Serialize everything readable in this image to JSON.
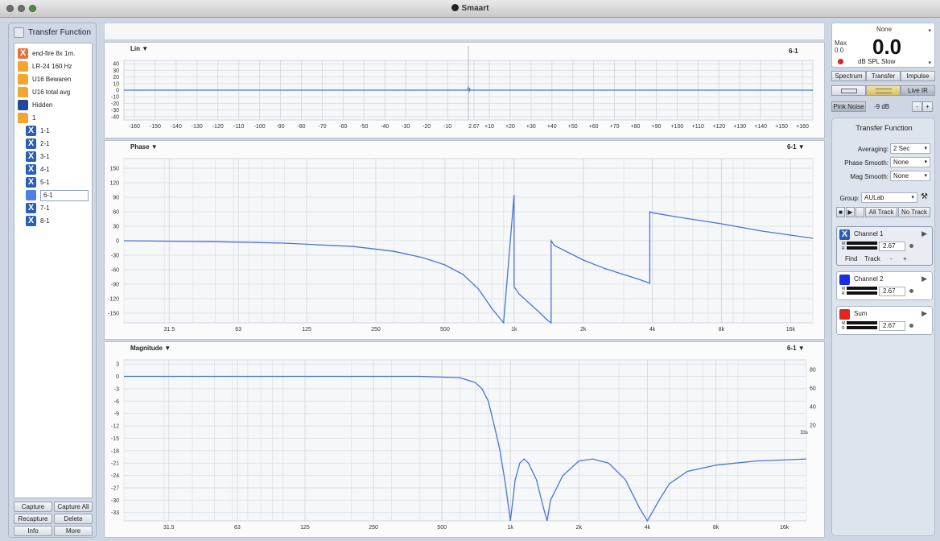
{
  "window": {
    "title": "Smaart"
  },
  "left_panel": {
    "title": "Transfer Function",
    "items": [
      {
        "label": "end-fire 8x 1m.",
        "icon": "x-orange-icon"
      },
      {
        "label": "LR-24 160 Hz",
        "icon": "folder-icon"
      },
      {
        "label": "U16 Bewaren",
        "icon": "folder-icon"
      },
      {
        "label": "U16 total avg",
        "icon": "folder-icon"
      },
      {
        "label": "Hidden",
        "icon": "blue-square-icon"
      },
      {
        "label": "1",
        "icon": "folder-open-icon"
      }
    ],
    "sub_items": [
      {
        "label": "1-1",
        "icon": "x-blue-icon"
      },
      {
        "label": "2-1",
        "icon": "x-blue-icon"
      },
      {
        "label": "3-1",
        "icon": "x-blue-icon"
      },
      {
        "label": "4-1",
        "icon": "x-blue-icon"
      },
      {
        "label": "5-1",
        "icon": "x-blue-icon"
      },
      {
        "label": "6-1",
        "icon": "light-blue-square-icon"
      },
      {
        "label": "7-1",
        "icon": "x-blue-icon"
      },
      {
        "label": "8-1",
        "icon": "x-blue-icon"
      }
    ],
    "buttons": {
      "capture": "Capture",
      "capture_all": "Capture All",
      "recapture": "Recapture",
      "delete": "Delete",
      "info": "Info",
      "more": "More"
    }
  },
  "impulse_plot": {
    "label": "Lin ▼",
    "trace": "6-1",
    "y_ticks": [
      "40",
      "30",
      "20",
      "10",
      "0",
      "-10",
      "-20",
      "-30",
      "-40"
    ],
    "x_ticks": [
      "-160",
      "-150",
      "-140",
      "-130",
      "-120",
      "-110",
      "-100",
      "-90",
      "-80",
      "-70",
      "-60",
      "-50",
      "-40",
      "-30",
      "-20",
      "-10",
      "2.67",
      "+10",
      "+20",
      "+30",
      "+40",
      "+50",
      "+60",
      "+70",
      "+80",
      "+90",
      "+100",
      "+110",
      "+120",
      "+130",
      "+140",
      "+150",
      "+160"
    ]
  },
  "phase_plot": {
    "label": "Phase ▼",
    "trace": "6-1 ▼",
    "y_ticks": [
      "150",
      "120",
      "90",
      "60",
      "30",
      "0",
      "-30",
      "-60",
      "-90",
      "-120",
      "-150"
    ],
    "x_ticks": [
      "31.5",
      "63",
      "125",
      "250",
      "500",
      "1k",
      "2k",
      "4k",
      "8k",
      "16k"
    ]
  },
  "magnitude_plot": {
    "label": "Magnitude ▼",
    "trace": "6-1 ▼",
    "y_ticks": [
      "3",
      "0",
      "-3",
      "-6",
      "-9",
      "-12",
      "-15",
      "-18",
      "-21",
      "-24",
      "-27",
      "-30",
      "-33"
    ],
    "y_ticks_right": [
      "80",
      "60",
      "40",
      "20"
    ],
    "right_note": "33s",
    "x_ticks": [
      "31.5",
      "63",
      "125",
      "250",
      "500",
      "1k",
      "2k",
      "4k",
      "8k",
      "16k"
    ]
  },
  "chart_data": [
    {
      "type": "line",
      "title": "Lin",
      "ylim": [
        -45,
        45
      ],
      "xlim": [
        -165,
        165
      ],
      "series": [
        {
          "name": "6-1",
          "x": [
            -165,
            -0.5,
            0,
            0.3,
            0.6,
            1,
            2,
            165
          ],
          "y": [
            0,
            0,
            6,
            -3,
            2,
            0,
            0,
            0
          ]
        }
      ]
    },
    {
      "type": "line",
      "title": "Phase",
      "x_scale": "log",
      "xlim": [
        20,
        20000
      ],
      "ylim": [
        -170,
        170
      ],
      "series": [
        {
          "name": "6-1",
          "x": [
            20,
            50,
            100,
            200,
            300,
            400,
            500,
            600,
            700,
            800,
            900,
            1000,
            1000,
            1050,
            1200,
            1300,
            1400,
            1450,
            1450,
            1500,
            2000,
            2500,
            3000,
            3500,
            3900,
            3900,
            4000,
            5000,
            8000,
            12000,
            20000
          ],
          "y": [
            0,
            -2,
            -5,
            -12,
            -22,
            -35,
            -50,
            -70,
            -100,
            -140,
            -180,
            95,
            -95,
            -110,
            -135,
            -150,
            -165,
            -172,
            0,
            -10,
            -40,
            -58,
            -70,
            -80,
            -88,
            60,
            58,
            50,
            35,
            20,
            5
          ]
        }
      ]
    },
    {
      "type": "line",
      "title": "Magnitude",
      "x_scale": "log",
      "xlim": [
        20,
        20000
      ],
      "ylim": [
        -35,
        4
      ],
      "series": [
        {
          "name": "6-1",
          "x": [
            20,
            100,
            400,
            600,
            700,
            750,
            800,
            850,
            900,
            950,
            1000,
            1050,
            1100,
            1150,
            1200,
            1300,
            1400,
            1450,
            1500,
            1700,
            2000,
            2300,
            2700,
            3200,
            3700,
            4000,
            4500,
            5000,
            6000,
            8000,
            12000,
            20000
          ],
          "y": [
            0,
            0,
            0,
            -0.3,
            -1.5,
            -3,
            -6,
            -12,
            -18,
            -26,
            -35,
            -25,
            -21,
            -20,
            -21,
            -25,
            -32,
            -35,
            -30,
            -24,
            -20.5,
            -20,
            -21,
            -25,
            -32,
            -36,
            -30,
            -26,
            -23,
            -21.5,
            -20.5,
            -20
          ]
        }
      ]
    }
  ],
  "right_panel": {
    "meter": {
      "source": "None",
      "max_label": "Max",
      "max_value": "0.0",
      "value": "0.0",
      "unit": "dB SPL Slow"
    },
    "mode_buttons": [
      "Spectrum",
      "Transfer",
      "Impulse"
    ],
    "live_ir": "Live IR",
    "pink_noise": "Pink Noise",
    "noise_level": "-9 dB",
    "section_title": "Transfer Function",
    "averaging_label": "Averaging:",
    "averaging_value": "2 Sec",
    "phase_smooth_label": "Phase Smooth:",
    "phase_smooth_value": "None",
    "mag_smooth_label": "Mag Smooth:",
    "mag_smooth_value": "None",
    "group_label": "Group:",
    "group_value": "AULab",
    "all_track": "All Track",
    "no_track": "No Track",
    "channels": [
      {
        "name": "Channel 1",
        "value": "2.67",
        "color": "#2a5db5"
      },
      {
        "name": "Channel 2",
        "value": "2.67",
        "color": "#1a2ee0"
      },
      {
        "name": "Sum",
        "value": "2.67",
        "color": "#e0251e"
      }
    ],
    "find": "Find",
    "track": "Track",
    "minus": "-",
    "plus": "+"
  }
}
